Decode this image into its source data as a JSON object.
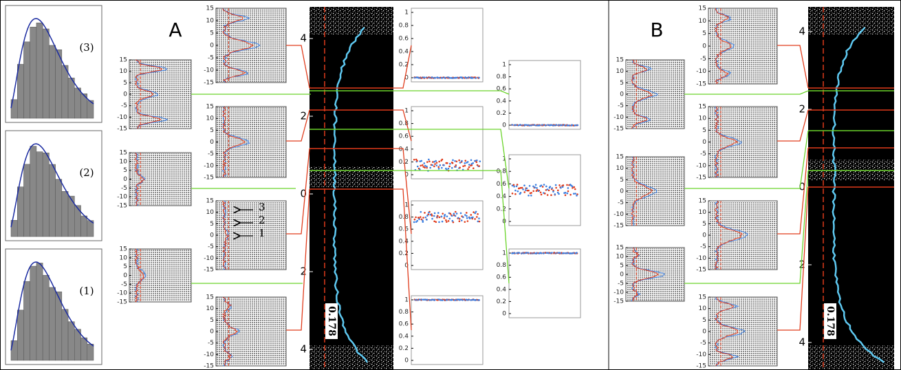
{
  "histograms": {
    "labels": [
      "(3)",
      "(2)",
      "(1)"
    ]
  },
  "panel_a": {
    "label": "A",
    "offset_panels": [
      {
        "yticks": [
          15,
          10,
          5,
          0,
          -5,
          -10,
          -15
        ]
      },
      {
        "yticks": [
          15,
          10,
          5,
          0,
          -5,
          -10,
          -15
        ]
      },
      {
        "yticks": [
          15,
          10,
          5,
          0,
          -5,
          -10,
          -15
        ]
      },
      {
        "yticks": [
          15,
          10,
          5,
          0,
          -5,
          -10,
          -15
        ]
      },
      {
        "yticks": [
          15,
          10,
          5,
          0,
          -5,
          -10,
          -15
        ]
      },
      {
        "yticks": [
          15,
          10,
          5,
          0,
          -5,
          -10,
          -15
        ]
      },
      {
        "yticks": [
          15,
          10,
          5,
          0,
          -5,
          -10,
          -15
        ]
      }
    ],
    "arrow_labels": [
      "3",
      "2",
      "1"
    ],
    "main": {
      "upper_yticks": [
        4,
        2,
        0
      ],
      "lower_yticks": [
        2,
        4
      ],
      "threshold": 0.178
    },
    "probability_panels": [
      {
        "yticks": [
          1,
          0.8,
          0.6,
          0.4,
          0.2,
          0
        ],
        "level": 0
      },
      {
        "yticks": [
          1,
          0.8,
          0.6,
          0.4,
          0.2,
          0
        ],
        "level": 0.15
      },
      {
        "yticks": [
          1,
          0.8,
          0.6,
          0.4,
          0.2,
          0
        ],
        "level": 0.8
      },
      {
        "yticks": [
          1,
          0.8,
          0.6,
          0.4,
          0.2,
          0
        ],
        "level": 1
      },
      {
        "yticks": [
          1,
          0.8,
          0.6,
          0.4,
          0.2,
          0
        ],
        "level": 0
      },
      {
        "yticks": [
          1,
          0.8,
          0.6,
          0.4,
          0.2,
          0
        ],
        "level": 0.5
      },
      {
        "yticks": [
          1,
          0.8,
          0.6,
          0.4,
          0.2,
          0
        ],
        "level": 1
      }
    ]
  },
  "panel_b": {
    "label": "B",
    "offset_panels": [
      {
        "yticks": [
          15,
          10,
          5,
          0,
          -5,
          -10,
          -15
        ]
      },
      {
        "yticks": [
          15,
          10,
          5,
          0,
          -5,
          -10,
          -15
        ]
      },
      {
        "yticks": [
          15,
          10,
          5,
          0,
          -5,
          -10,
          -15
        ]
      },
      {
        "yticks": [
          15,
          10,
          5,
          0,
          -5,
          -10,
          -15
        ]
      },
      {
        "yticks": [
          15,
          10,
          5,
          0,
          -5,
          -10,
          -15
        ]
      },
      {
        "yticks": [
          15,
          10,
          5,
          0,
          -5,
          -10,
          -15
        ]
      },
      {
        "yticks": [
          15,
          10,
          5,
          0,
          -5,
          -10,
          -15
        ]
      }
    ],
    "main": {
      "upper_yticks": [
        4,
        2,
        0
      ],
      "lower_yticks": [
        2,
        4
      ],
      "threshold": 0.178
    }
  }
}
